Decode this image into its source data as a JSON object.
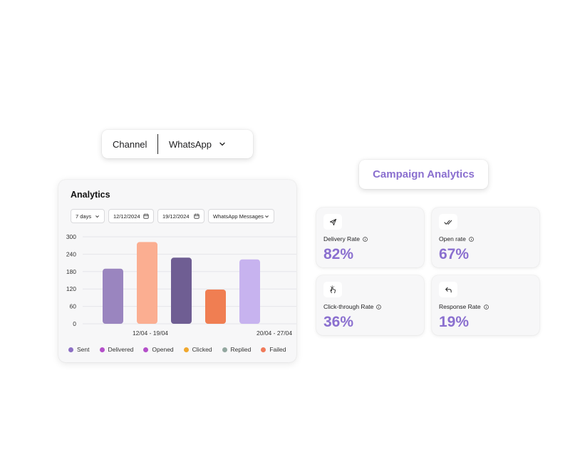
{
  "channel": {
    "label": "Channel",
    "value": "WhatsApp"
  },
  "campaign_title": "Campaign Analytics",
  "analytics": {
    "title": "Analytics",
    "filters": {
      "range": "7 days",
      "start_date": "12/12/2024",
      "end_date": "19/12/2024",
      "message_type": "WhatsApp Messages"
    },
    "legend": [
      {
        "label": "Sent",
        "color": "#8c6fc4"
      },
      {
        "label": "Delivered",
        "color": "#b44fc9"
      },
      {
        "label": "Opened",
        "color": "#b44fc9"
      },
      {
        "label": "Clicked",
        "color": "#f0a82e"
      },
      {
        "label": "Replied",
        "color": "#93a8a0"
      },
      {
        "label": "Failed",
        "color": "#f07a5a"
      }
    ]
  },
  "chart_data": {
    "type": "bar",
    "categories": [
      "12/04 - 19/04",
      "20/04 - 27/04"
    ],
    "yticks": [
      0,
      60,
      120,
      180,
      240,
      300
    ],
    "ylim": [
      0,
      300
    ],
    "grid": true,
    "bars": [
      {
        "value": 190,
        "color": "#9a85bf"
      },
      {
        "value": 282,
        "color": "#fbae91"
      },
      {
        "value": 228,
        "color": "#6f5e93"
      },
      {
        "value": 118,
        "color": "#f07e52"
      },
      {
        "value": 222,
        "color": "#c7b3ef"
      }
    ]
  },
  "metrics": [
    {
      "label": "Delivery Rate",
      "value": "82%",
      "icon": "send-icon"
    },
    {
      "label": "Open rate",
      "value": "67%",
      "icon": "double-check-icon"
    },
    {
      "label": "Click-through Rate",
      "value": "36%",
      "icon": "click-hand-icon"
    },
    {
      "label": "Response Rate",
      "value": "19%",
      "icon": "reply-arrow-icon"
    }
  ]
}
